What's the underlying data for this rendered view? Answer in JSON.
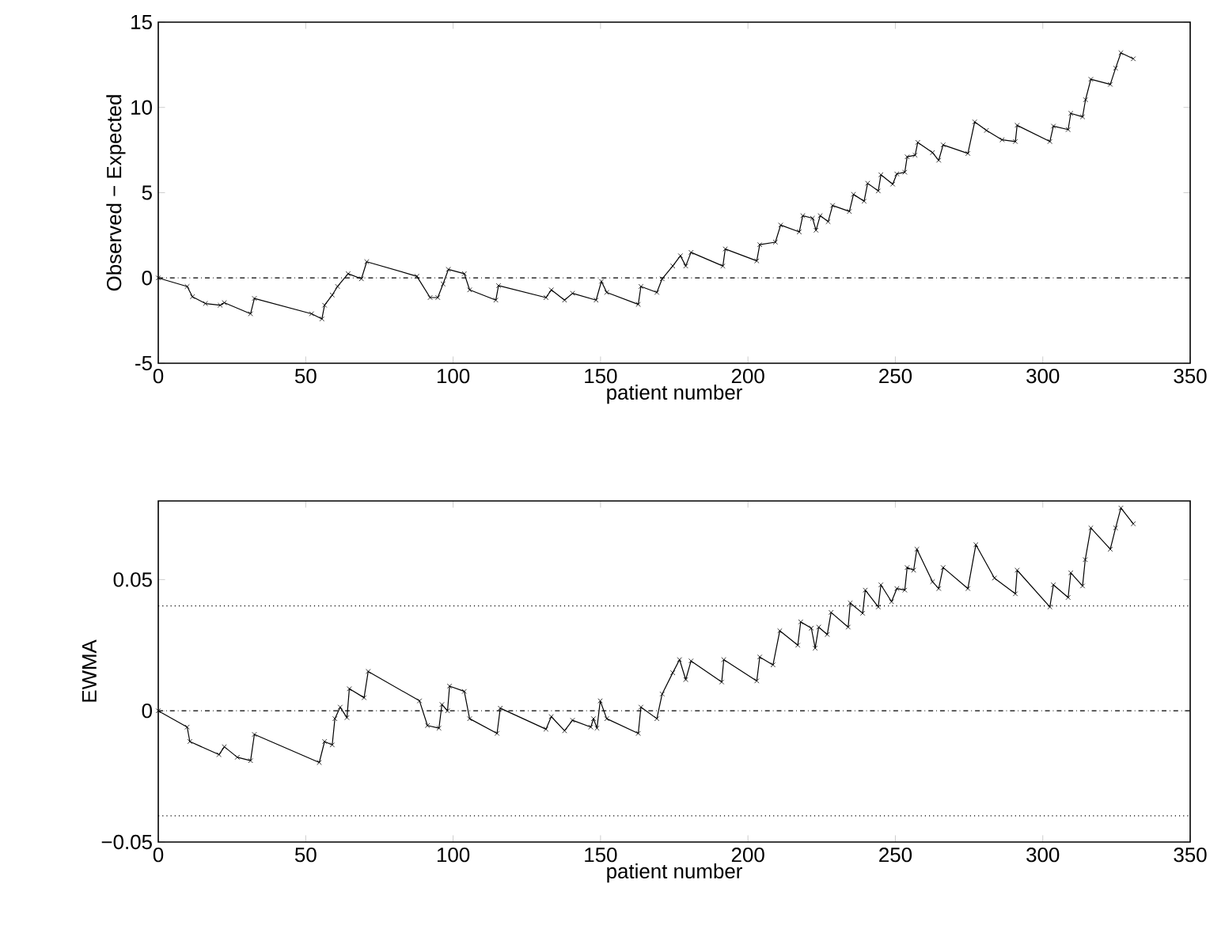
{
  "chart_data": [
    {
      "type": "line",
      "ylabel": "Observed − Expected",
      "xlabel": "patient number",
      "xlim": [
        0,
        350
      ],
      "xticks": [
        0,
        50,
        100,
        150,
        200,
        250,
        300,
        350
      ],
      "ylim": [
        -5,
        15
      ],
      "yticks": [
        -5,
        0,
        5,
        10,
        15
      ],
      "color": "#000000",
      "marker": "cross",
      "line_style": "solid",
      "grid": false,
      "ref_lines": [
        {
          "axis": "y",
          "value": 0,
          "line_style": "dashdot",
          "color": "#000000"
        }
      ],
      "x": [
        0,
        9.8,
        11.6,
        16,
        21,
        22.4,
        31.3,
        32.6,
        52,
        55.5,
        56.4,
        59,
        60.8,
        64.4,
        68.9,
        70.7,
        87.7,
        92.2,
        94.8,
        96.6,
        98.4,
        103.8,
        105.6,
        114.5,
        115.4,
        131.5,
        133.3,
        137.8,
        140.5,
        148.5,
        150.3,
        152.1,
        162.8,
        163.7,
        169.1,
        170.9,
        174.5,
        177.1,
        178.9,
        180.7,
        191.5,
        192.3,
        203,
        204,
        209.3,
        211.1,
        217.4,
        218.6,
        221.9,
        223.1,
        224.5,
        227.2,
        228.7,
        234.4,
        235.8,
        239.4,
        240.6,
        244.2,
        245.1,
        249.1,
        250.5,
        253.2,
        254,
        256.7,
        257.6,
        262.6,
        264.7,
        266.2,
        274.6,
        276.9,
        280.9,
        286.2,
        290.7,
        291.3,
        302.4,
        303.6,
        308.6,
        309.5,
        313.5,
        314.5,
        316.3,
        322.9,
        324.7,
        326.5,
        330.7
      ],
      "values": [
        0,
        -0.5,
        -1.1,
        -1.5,
        -1.6,
        -1.45,
        -2.1,
        -1.2,
        -2.1,
        -2.4,
        -1.6,
        -1.0,
        -0.5,
        0.25,
        -0.05,
        0.95,
        0.1,
        -1.15,
        -1.15,
        -0.35,
        0.5,
        0.25,
        -0.7,
        -1.3,
        -0.45,
        -1.15,
        -0.7,
        -1.3,
        -0.9,
        -1.3,
        -0.2,
        -0.85,
        -1.55,
        -0.5,
        -0.85,
        -0.05,
        0.7,
        1.3,
        0.7,
        1.5,
        0.7,
        1.7,
        1.0,
        1.95,
        2.1,
        3.1,
        2.7,
        3.65,
        3.5,
        2.8,
        3.65,
        3.3,
        4.25,
        3.9,
        4.9,
        4.5,
        5.55,
        5.1,
        6.05,
        5.5,
        6.1,
        6.2,
        7.1,
        7.2,
        7.95,
        7.35,
        6.9,
        7.8,
        7.3,
        9.15,
        8.65,
        8.1,
        8.0,
        8.95,
        8.0,
        8.9,
        8.7,
        9.65,
        9.45,
        10.45,
        11.65,
        11.35,
        12.3,
        13.2,
        12.85
      ]
    },
    {
      "type": "line",
      "ylabel": "EWMA",
      "xlabel": "patient number",
      "xlim": [
        0,
        350
      ],
      "xticks": [
        0,
        50,
        100,
        150,
        200,
        250,
        300,
        350
      ],
      "ylim": [
        -0.05,
        0.08
      ],
      "yticks": [
        {
          "value": -0.05,
          "label": "−0.05"
        },
        0,
        0.05
      ],
      "color": "#000000",
      "marker": "cross",
      "line_style": "solid",
      "grid": false,
      "ref_lines": [
        {
          "axis": "y",
          "value": 0,
          "line_style": "dashdot",
          "color": "#000000"
        },
        {
          "axis": "y",
          "value": 0.04,
          "line_style": "dotted",
          "color": "#000000"
        },
        {
          "axis": "y",
          "value": -0.04,
          "line_style": "dotted",
          "color": "#000000"
        }
      ],
      "x": [
        0,
        9.8,
        10.7,
        20.6,
        22.4,
        26.8,
        31.3,
        32.6,
        54.6,
        56.4,
        59,
        59.9,
        61.7,
        64,
        64.8,
        69.8,
        71.2,
        88.6,
        91.3,
        95.2,
        96.2,
        98.1,
        98.8,
        103.8,
        105.6,
        114.9,
        116,
        131.5,
        133.3,
        137.8,
        140.5,
        146.7,
        147.6,
        148.8,
        149.9,
        152.1,
        162.8,
        163.7,
        169.1,
        170.9,
        174.5,
        176.8,
        178.9,
        180.7,
        191.1,
        191.8,
        203,
        204,
        208.5,
        210.8,
        216.9,
        217.9,
        221.5,
        222.8,
        224,
        226.9,
        228.2,
        234,
        234.7,
        238.9,
        239.8,
        244.2,
        245.1,
        248.7,
        250.5,
        253.2,
        254,
        256.2,
        257.3,
        262.6,
        264.7,
        266.2,
        274.6,
        277.3,
        283.6,
        290.7,
        291.3,
        302.4,
        303.6,
        308.6,
        309.5,
        313.5,
        314.4,
        316.3,
        322.9,
        324.7,
        326.5,
        330.7
      ],
      "values": [
        0,
        -0.0062,
        -0.0117,
        -0.0167,
        -0.0137,
        -0.0177,
        -0.019,
        -0.009,
        -0.0197,
        -0.0117,
        -0.013,
        -0.003,
        0.0014,
        -0.0026,
        0.0084,
        0.005,
        0.015,
        0.0038,
        -0.0056,
        -0.0066,
        0.0024,
        0,
        0.0094,
        0.0074,
        -0.003,
        -0.0086,
        0.001,
        -0.007,
        -0.0022,
        -0.0076,
        -0.0036,
        -0.0062,
        -0.003,
        -0.0066,
        0.0038,
        -0.003,
        -0.0086,
        0.0014,
        -0.003,
        0.0064,
        0.0145,
        0.0195,
        0.0119,
        0.019,
        0.011,
        0.0195,
        0.0114,
        0.0205,
        0.0175,
        0.0305,
        0.025,
        0.0339,
        0.0315,
        0.0239,
        0.0319,
        0.0291,
        0.0375,
        0.0319,
        0.0411,
        0.0372,
        0.046,
        0.0396,
        0.048,
        0.0416,
        0.0466,
        0.046,
        0.0546,
        0.0536,
        0.0616,
        0.0492,
        0.0466,
        0.0546,
        0.0466,
        0.0633,
        0.0506,
        0.0446,
        0.0536,
        0.0396,
        0.048,
        0.0432,
        0.0526,
        0.0476,
        0.0576,
        0.0697,
        0.0616,
        0.0697,
        0.0773,
        0.0713
      ]
    }
  ]
}
